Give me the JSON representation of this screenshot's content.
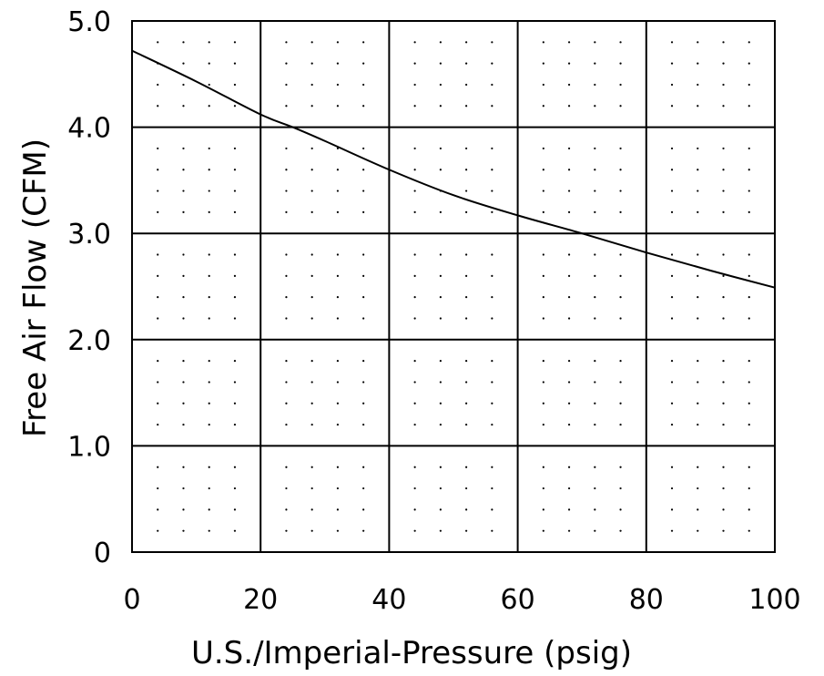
{
  "chart_data": {
    "type": "line",
    "xlabel": "U.S./Imperial-Pressure (psig)",
    "ylabel": "Free Air Flow (CFM)",
    "xlim": [
      0,
      100
    ],
    "ylim": [
      0,
      5
    ],
    "x_ticks": [
      0,
      20,
      40,
      60,
      80,
      100
    ],
    "x_tick_labels": [
      "0",
      "20",
      "40",
      "60",
      "80",
      "100"
    ],
    "y_ticks": [
      0,
      1,
      2,
      3,
      4,
      5
    ],
    "y_tick_labels": [
      "0",
      "1.0",
      "2.0",
      "3.0",
      "4.0",
      "5.0"
    ],
    "grid": true,
    "minor_grid": "dotted",
    "series": [
      {
        "x": [
          0,
          10,
          20,
          25,
          30,
          40,
          50,
          60,
          70,
          80,
          90,
          100
        ],
        "y": [
          4.72,
          4.43,
          4.12,
          4.0,
          3.87,
          3.6,
          3.36,
          3.17,
          3.0,
          2.82,
          2.65,
          2.49
        ]
      }
    ],
    "colors": {
      "line": "#000000",
      "grid": "#000000",
      "background": "#ffffff"
    }
  }
}
